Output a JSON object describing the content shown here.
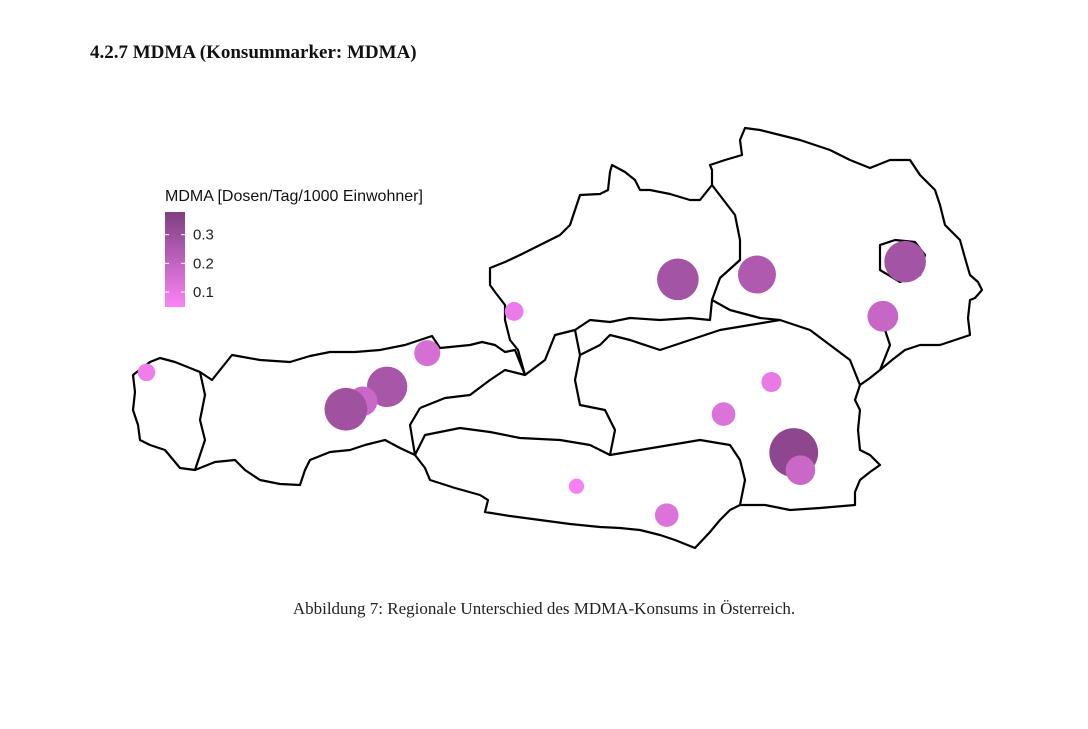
{
  "section_heading": "4.2.7 MDMA (Konsummarker: MDMA)",
  "caption": "Abbildung 7: Regionale Unterschied des MDMA-Konsums in Österreich.",
  "chart_data": {
    "type": "bubble-map",
    "legend_title": "MDMA [Dosen/Tag/1000 Einwohner]",
    "xlim": [
      9.53,
      17.16
    ],
    "ylim": [
      46.37,
      49.02
    ],
    "colorlim": [
      0.048,
      0.379
    ],
    "colorticks": [
      0.1,
      0.2,
      0.3
    ],
    "color_low": "#fb84f8",
    "color_high": "#7f3f80",
    "x": [
      9.66,
      12.96,
      12.18,
      11.82,
      11.6,
      11.45,
      14.43,
      15.14,
      16.47,
      16.27,
      15.27,
      14.84,
      15.47,
      15.53,
      13.52,
      14.33
    ],
    "y": [
      47.49,
      47.87,
      47.61,
      47.4,
      47.31,
      47.26,
      48.07,
      48.1,
      48.18,
      47.84,
      47.43,
      47.23,
      46.99,
      46.88,
      46.78,
      46.6
    ],
    "values": [
      0.08,
      0.09,
      0.15,
      0.27,
      0.18,
      0.29,
      0.28,
      0.25,
      0.28,
      0.19,
      0.1,
      0.13,
      0.34,
      0.18,
      0.06,
      0.13
    ]
  }
}
